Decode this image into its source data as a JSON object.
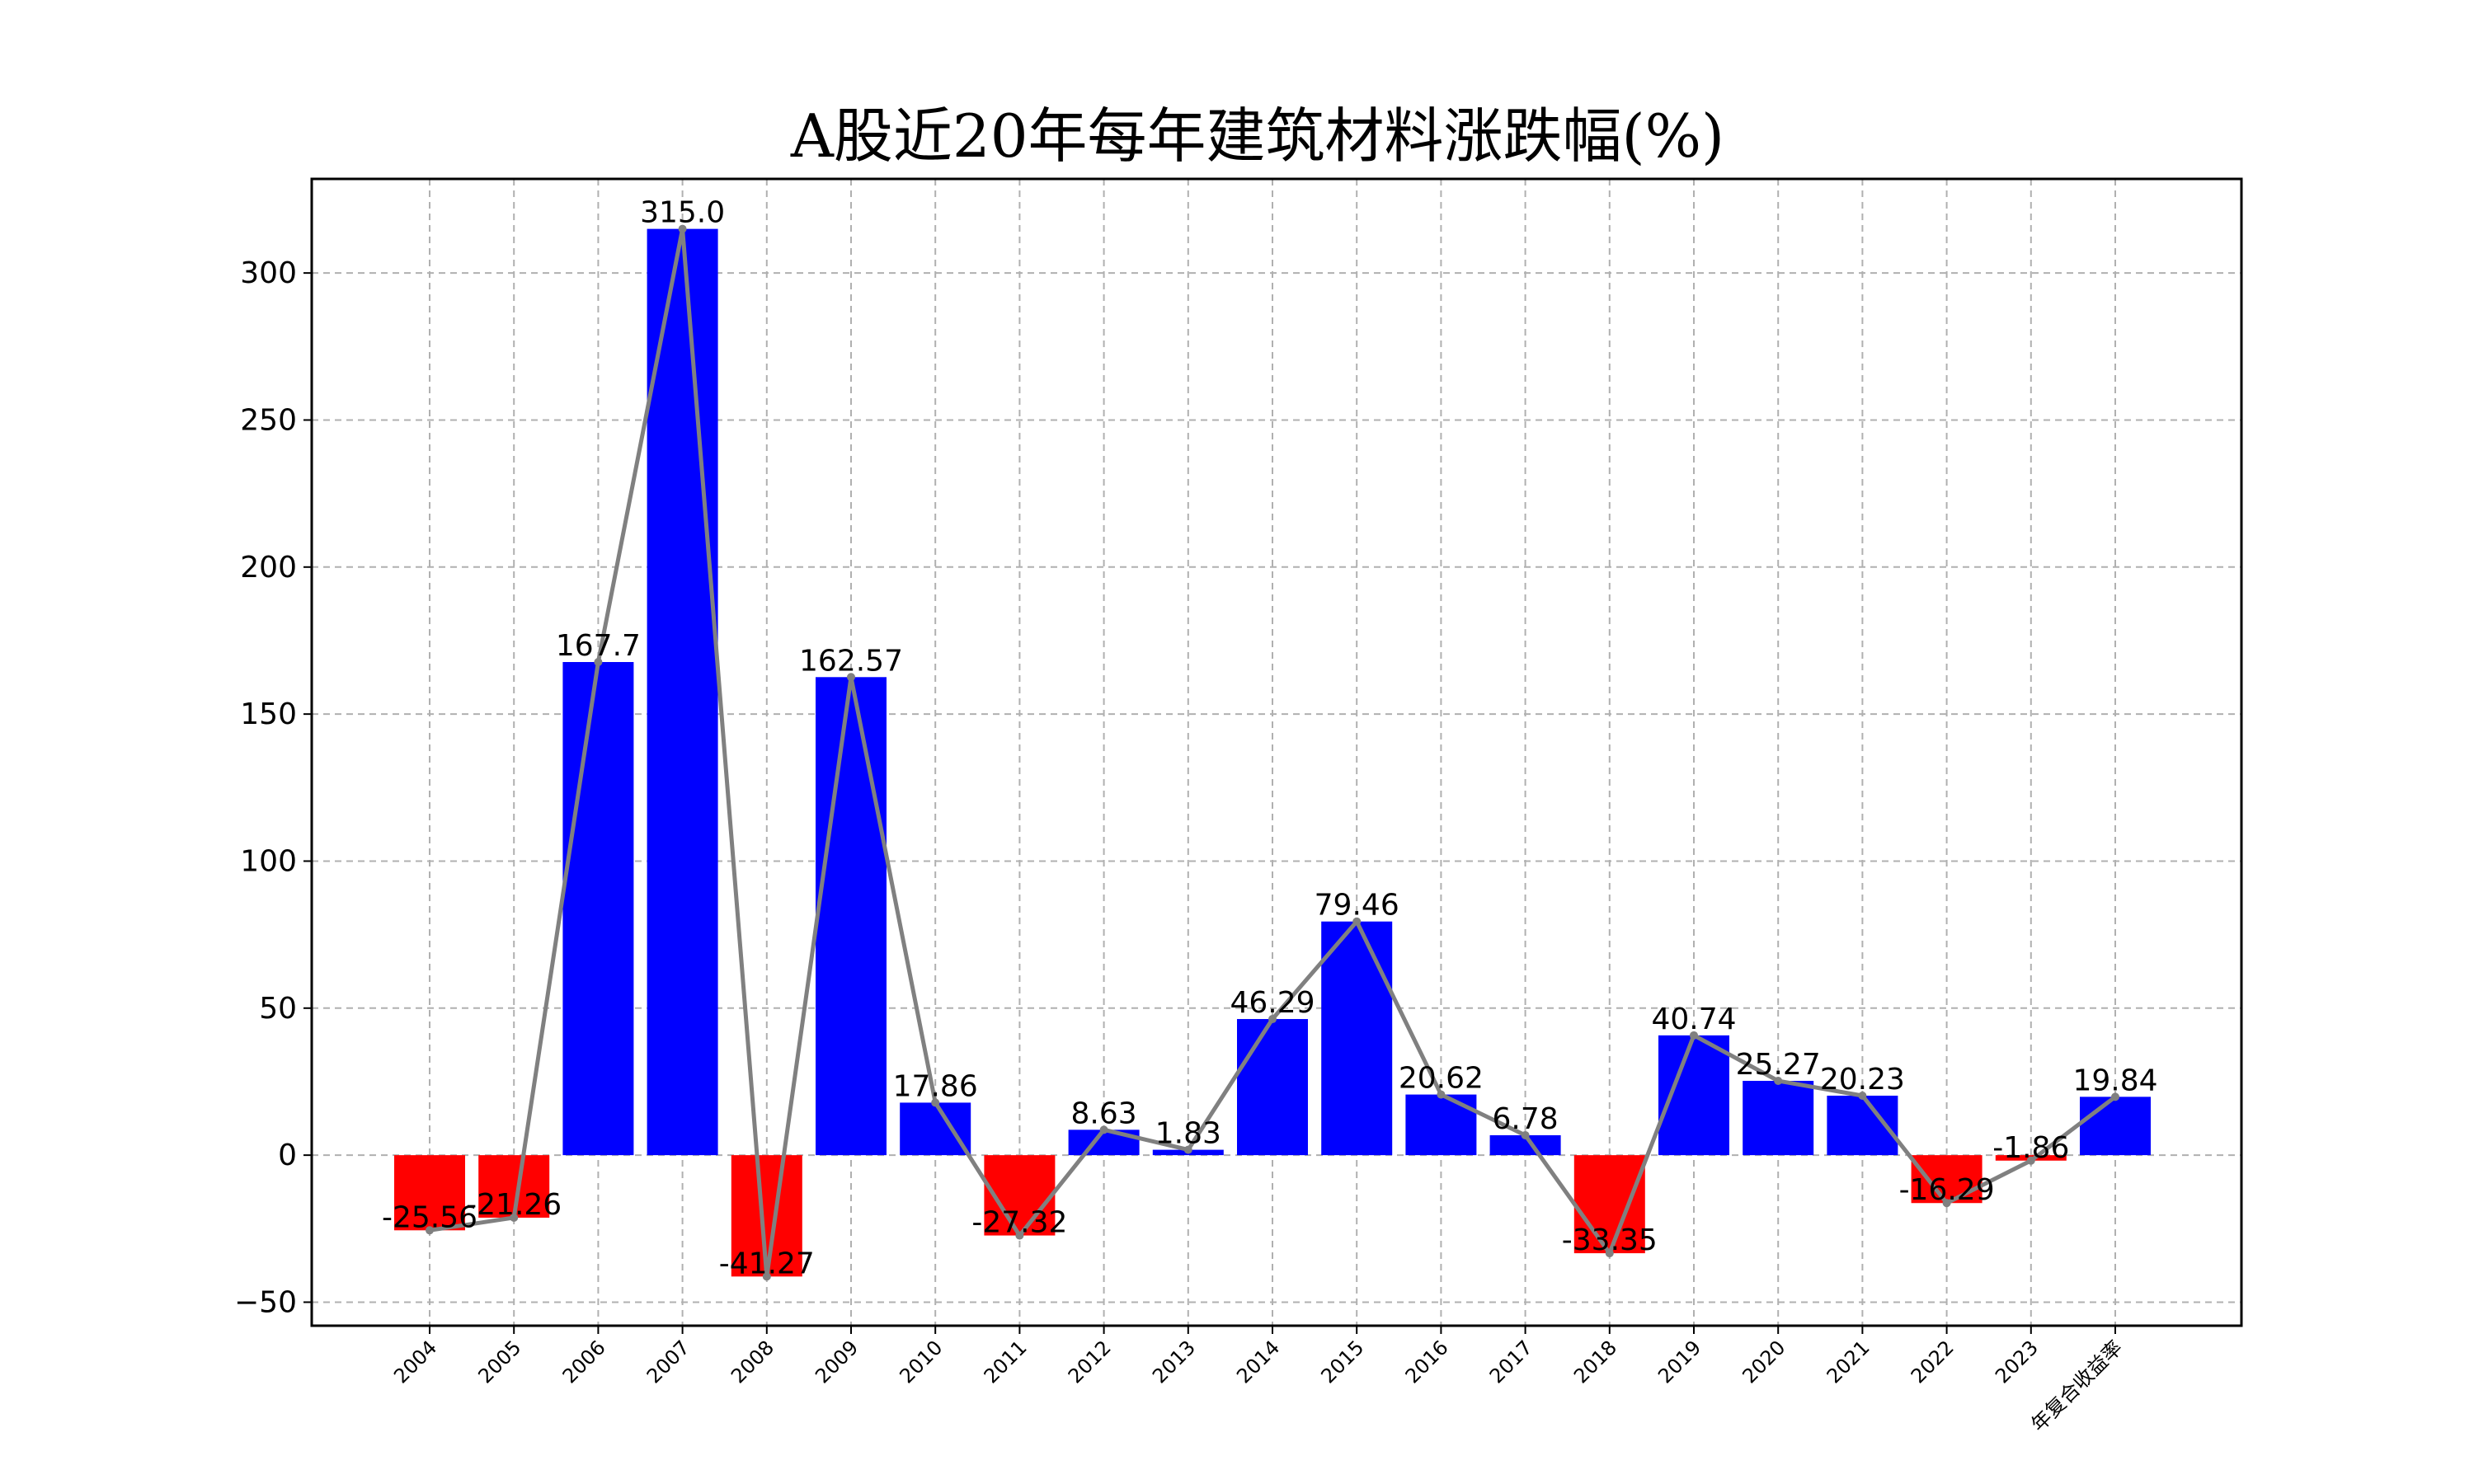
{
  "chart_data": {
    "type": "bar",
    "title": "A股近20年每年建筑材料涨跌幅(%)",
    "xlabel": "",
    "ylabel": "",
    "categories": [
      "2004",
      "2005",
      "2006",
      "2007",
      "2008",
      "2009",
      "2010",
      "2011",
      "2012",
      "2013",
      "2014",
      "2015",
      "2016",
      "2017",
      "2018",
      "2019",
      "2020",
      "2021",
      "2022",
      "2023",
      "年复合收益率"
    ],
    "values": [
      -25.56,
      -21.26,
      167.7,
      315.0,
      -41.27,
      162.57,
      17.86,
      -27.32,
      8.63,
      1.83,
      46.29,
      79.46,
      20.62,
      6.78,
      -33.35,
      40.74,
      25.27,
      20.23,
      -16.29,
      -1.86,
      19.84
    ],
    "value_labels": [
      "-25.56",
      "-21.26",
      "167.7",
      "315.0",
      "-41.27",
      "162.57",
      "17.86",
      "-27.32",
      "8.63",
      "1.83",
      "46.29",
      "79.46",
      "20.62",
      "6.78",
      "-33.35",
      "40.74",
      "25.27",
      "20.23",
      "-16.29",
      "-1.86",
      "19.84"
    ],
    "overlay_line": true,
    "ylim": [
      -58,
      332
    ],
    "yticks": [
      -50,
      0,
      50,
      100,
      150,
      200,
      250,
      300
    ],
    "ytick_labels": [
      "−50",
      "0",
      "50",
      "100",
      "150",
      "200",
      "250",
      "300"
    ],
    "grid": true,
    "colors": {
      "positive": "#0000ff",
      "negative": "#ff0000",
      "line": "#808080"
    }
  }
}
